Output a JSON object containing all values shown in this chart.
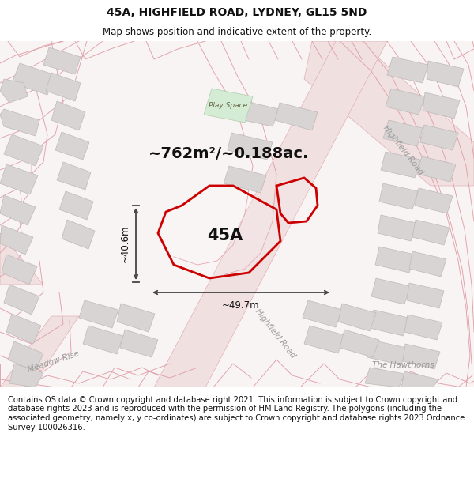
{
  "title": "45A, HIGHFIELD ROAD, LYDNEY, GL15 5ND",
  "subtitle": "Map shows position and indicative extent of the property.",
  "area_label": "~762m²/~0.188ac.",
  "plot_label": "45A",
  "dim_width": "~49.7m",
  "dim_height": "~40.6m",
  "play_space_label": "Play Space",
  "meadow_rise_label": "Meadow Rise",
  "highfield_road_right_label": "Highfield Road",
  "highfield_road_diag_label": "Highfield Road",
  "the_hawthorns_label": "The Hawthorns",
  "footer_text": "Contains OS data © Crown copyright and database right 2021. This information is subject to Crown copyright and database rights 2023 and is reproduced with the permission of HM Land Registry. The polygons (including the associated geometry, namely x, y co-ordinates) are subject to Crown copyright and database rights 2023 Ordnance Survey 100026316.",
  "title_fontsize": 10,
  "subtitle_fontsize": 8.5,
  "footer_fontsize": 7.2,
  "map_bg": "#f8f4f4",
  "road_fill": "#f0e0e0",
  "road_line": "#e0a0a8",
  "building_fill": "#d8d4d4",
  "building_edge": "#c0b8b8",
  "green_fill": "#d4ecd4",
  "green_edge": "#b0ccb0",
  "plot_line": "#cc0000",
  "dim_color": "#444444",
  "label_color": "#aaaaaa",
  "text_color": "#333333"
}
